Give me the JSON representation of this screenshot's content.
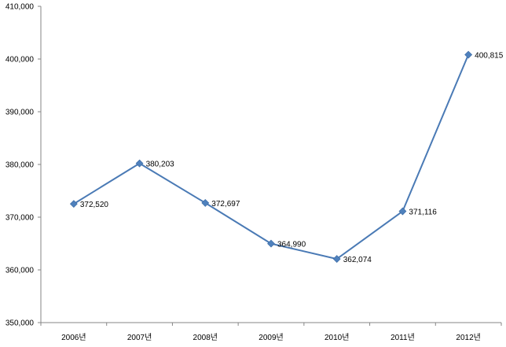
{
  "chart_data": {
    "type": "line",
    "title": "",
    "xlabel": "",
    "ylabel": "",
    "categories": [
      "2006년",
      "2007년",
      "2008년",
      "2009년",
      "2010년",
      "2011년",
      "2012년"
    ],
    "series": [
      {
        "values": [
          372520,
          380203,
          372697,
          364990,
          362074,
          371116,
          400815
        ],
        "labels": [
          "372,520",
          "380,203",
          "372,697",
          "364,990",
          "362,074",
          "371,116",
          "400,815"
        ],
        "color": "#4a7ab5",
        "marker_color": "#4f81bd",
        "marker": "diamond"
      }
    ],
    "ylim": [
      350000,
      410000
    ],
    "y_ticks": [
      350000,
      360000,
      370000,
      380000,
      390000,
      400000,
      410000
    ],
    "y_tick_labels": [
      "350,000",
      "360,000",
      "370,000",
      "380,000",
      "390,000",
      "400,000",
      "410,000"
    ],
    "grid": false,
    "legend": "none",
    "axis_color": "#868686"
  }
}
